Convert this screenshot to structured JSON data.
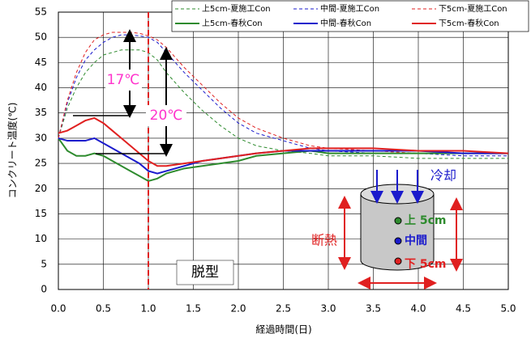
{
  "chart_data": {
    "type": "line",
    "xlabel": "経過時間(日)",
    "ylabel": "コンクリート温度(℃)",
    "x": [
      0,
      0.1,
      0.2,
      0.3,
      0.4,
      0.5,
      0.6,
      0.7,
      0.8,
      0.9,
      1.0,
      1.1,
      1.2,
      1.4,
      1.6,
      1.8,
      2.0,
      2.2,
      2.5,
      2.8,
      3.0,
      3.5,
      4.0,
      4.5,
      5.0
    ],
    "series": [
      {
        "name": "上5cm-夏施工Con",
        "color": "#2e8b2e",
        "dashed": true,
        "values": [
          30,
          36,
          40,
          43,
          45,
          46.5,
          47,
          47.5,
          47.5,
          47.5,
          47,
          45.5,
          43,
          39,
          35.5,
          32.5,
          30,
          28.5,
          27.5,
          27,
          26.5,
          26.5,
          26,
          26,
          26
        ]
      },
      {
        "name": "中間-夏施工Con",
        "color": "#1a1acc",
        "dashed": true,
        "values": [
          30,
          37,
          42,
          45.5,
          47.5,
          49,
          50,
          50.5,
          50.5,
          50.3,
          50,
          49,
          47,
          43,
          39.5,
          36,
          33,
          31,
          29.5,
          28,
          27.5,
          27,
          27,
          26.5,
          26.5
        ]
      },
      {
        "name": "下5cm-夏施工Con",
        "color": "#e02020",
        "dashed": true,
        "values": [
          30,
          37.5,
          43,
          47,
          49.5,
          50.5,
          51,
          51,
          51,
          50.8,
          50.3,
          49.5,
          48,
          44,
          40.5,
          37,
          34,
          32,
          30,
          28.5,
          28,
          27.5,
          27,
          27,
          27
        ]
      },
      {
        "name": "上5cm-春秋Con",
        "color": "#2e8b2e",
        "dashed": false,
        "values": [
          30,
          27.5,
          26.5,
          26.5,
          27,
          26.5,
          25.5,
          24.5,
          23.5,
          22.5,
          21.5,
          22,
          23,
          24,
          24.5,
          25,
          25.5,
          26.5,
          27,
          27.5,
          27,
          27,
          27,
          27,
          27
        ]
      },
      {
        "name": "中間-春秋Con",
        "color": "#1a1acc",
        "dashed": false,
        "values": [
          30,
          29.5,
          29.5,
          29.5,
          30,
          29,
          28,
          27,
          26,
          25,
          23.5,
          23,
          23.5,
          24.5,
          25.5,
          26,
          26.5,
          27,
          27.5,
          27.5,
          27.5,
          27.5,
          27.5,
          27,
          27
        ]
      },
      {
        "name": "下5cm-春秋Con",
        "color": "#e02020",
        "dashed": false,
        "values": [
          31,
          31.5,
          32.5,
          33.5,
          34,
          33,
          31.5,
          30,
          28.5,
          27,
          25.5,
          24.5,
          24.5,
          25,
          25.5,
          26,
          26.5,
          27,
          27.5,
          28,
          28,
          28,
          27.5,
          27.5,
          27
        ]
      }
    ],
    "xlim": [
      0,
      5
    ],
    "ylim": [
      0,
      55
    ],
    "xticks": [
      {
        "value": 0,
        "label": "0.0"
      },
      {
        "value": 0.5,
        "label": "0.5"
      },
      {
        "value": 1,
        "label": "1.0"
      },
      {
        "value": 1.5,
        "label": "1.5"
      },
      {
        "value": 2,
        "label": "2.0"
      },
      {
        "value": 2.5,
        "label": "2.5"
      },
      {
        "value": 3,
        "label": "3.0"
      },
      {
        "value": 3.5,
        "label": "3.5"
      },
      {
        "value": 4,
        "label": "4.0"
      },
      {
        "value": 4.5,
        "label": "4.5"
      },
      {
        "value": 5,
        "label": "5.0"
      }
    ],
    "yticks": [
      0,
      5,
      10,
      15,
      20,
      25,
      30,
      35,
      40,
      45,
      50,
      55
    ],
    "grid": true,
    "demold_x": 1.0,
    "annotations": [
      "17℃",
      "20℃",
      "脱型",
      "冷却",
      "上 5cm",
      "中間",
      "下 5cm",
      "断熱"
    ]
  }
}
